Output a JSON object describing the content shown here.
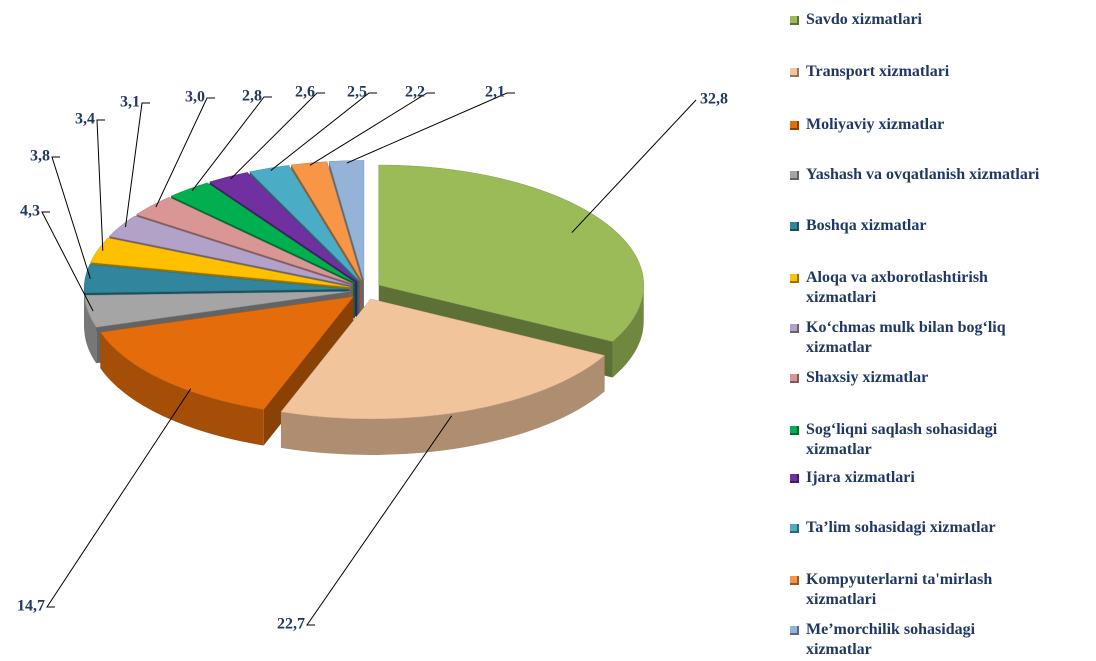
{
  "chart_data": {
    "type": "pie",
    "categories": [
      "Savdo xizmatlari",
      "Transport xizmatlari",
      "Moliyaviy xizmatlar",
      "Yashash va ovqatlanish xizmatlari",
      "Boshqa xizmatlar",
      "Aloqa va axborotlashtirish xizmatlari",
      "Ko‘chmas mulk bilan bog‘liq xizmatlar",
      "Shaxsiy xizmatlar",
      "Sog‘liqni saqlash sohasidagi xizmatlar",
      "Ijara xizmatlari",
      "Ta’lim sohasidagi xizmatlar",
      "Kompyuterlarni ta'mirlash xizmatlari",
      "Me’morchilik sohasidagi xizmatlar"
    ],
    "values": [
      32.8,
      22.7,
      14.7,
      4.3,
      3.8,
      3.4,
      3.1,
      3.0,
      2.8,
      2.6,
      2.5,
      2.2,
      2.1
    ],
    "value_labels": [
      "32,8",
      "22,7",
      "14,7",
      "4,3",
      "3,8",
      "3,4",
      "3,1",
      "3,0",
      "2,8",
      "2,6",
      "2,5",
      "2,2",
      "2,1"
    ],
    "colors": [
      "#9bbb59",
      "#f2c49c",
      "#e46c0a",
      "#a5a5a5",
      "#31859c",
      "#ffc000",
      "#b3a2c7",
      "#d99694",
      "#00b050",
      "#7030a0",
      "#4bacc6",
      "#f79646",
      "#95b3d7"
    ]
  }
}
